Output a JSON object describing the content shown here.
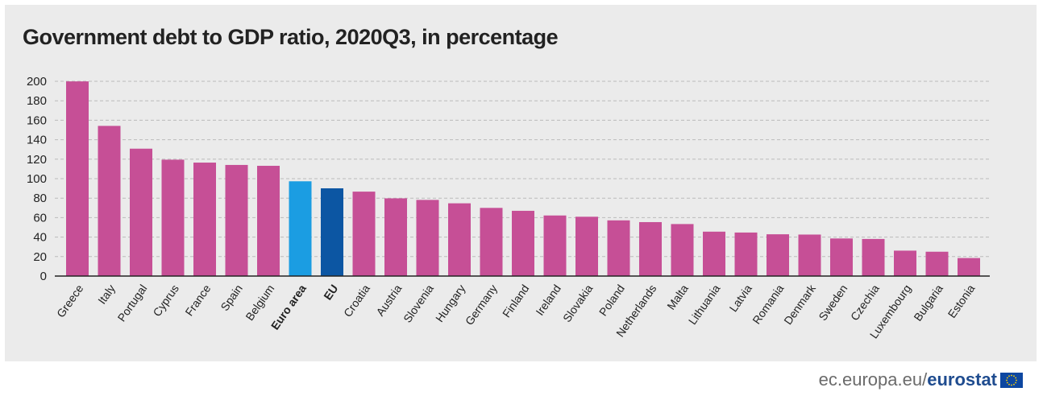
{
  "colors": {
    "default_bar": "#c64f96",
    "euro_area_bar": "#1b9de2",
    "eu_bar": "#0c56a3",
    "panel_bg": "#ebebeb",
    "grid": "#bbbbbb",
    "axis": "#222222",
    "footer_text": "#6b6b6b",
    "footer_brand": "#1f4c8f",
    "flag_blue": "#0d47a1",
    "flag_star": "#ffd400"
  },
  "chart_data": {
    "type": "bar",
    "title": "Government debt to GDP ratio, 2020Q3, in percentage",
    "xlabel": "",
    "ylabel": "",
    "ylim": [
      0,
      200
    ],
    "yticks": [
      0,
      20,
      40,
      60,
      80,
      100,
      120,
      140,
      160,
      180,
      200
    ],
    "grid": true,
    "categories": [
      "Greece",
      "Italy",
      "Portugal",
      "Cyprus",
      "France",
      "Spain",
      "Belgium",
      "Euro area",
      "EU",
      "Croatia",
      "Austria",
      "Slovenia",
      "Hungary",
      "Germany",
      "Finland",
      "Ireland",
      "Slovakia",
      "Poland",
      "Netherlands",
      "Malta",
      "Lithuania",
      "Latvia",
      "Romania",
      "Denmark",
      "Sweden",
      "Czechia",
      "Luxembourg",
      "Bulgaria",
      "Estonia"
    ],
    "values": [
      199.9,
      154.2,
      130.8,
      119.5,
      116.5,
      114.1,
      113.2,
      97.3,
      90.1,
      86.7,
      79.8,
      78.2,
      74.7,
      70.0,
      67.0,
      62.2,
      60.9,
      57.2,
      55.4,
      53.4,
      45.6,
      44.7,
      42.9,
      42.6,
      38.6,
      38.1,
      26.1,
      25.0,
      18.5
    ],
    "highlight": {
      "Euro area": "euro_area_bar",
      "EU": "eu_bar"
    },
    "bold_categories": [
      "Euro area",
      "EU"
    ]
  },
  "footer": {
    "domain": "ec.europa.eu/",
    "brand": "eurostat",
    "logo_icon": "eu-flag-icon"
  }
}
